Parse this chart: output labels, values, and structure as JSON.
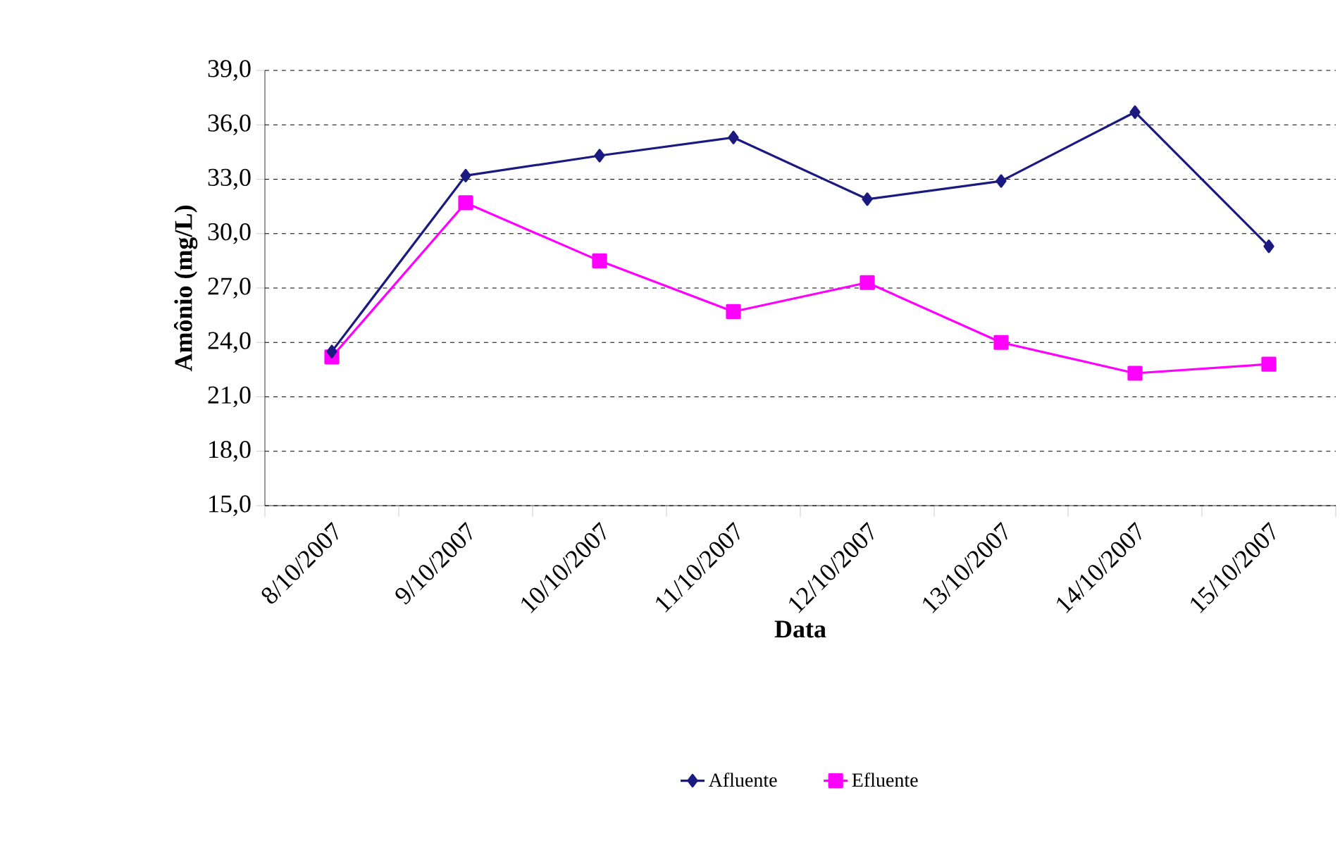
{
  "chart_data": {
    "type": "line",
    "xlabel": "Data",
    "ylabel": "Amônio (mg/L)",
    "categories": [
      "8/10/2007",
      "9/10/2007",
      "10/10/2007",
      "11/10/2007",
      "12/10/2007",
      "13/10/2007",
      "14/10/2007",
      "15/10/2007"
    ],
    "series": [
      {
        "name": "Afluente",
        "color": "#1a1a80",
        "marker": "diamond",
        "values": [
          23.5,
          33.2,
          34.3,
          35.3,
          31.9,
          32.9,
          36.7,
          29.3
        ]
      },
      {
        "name": "Efluente",
        "color": "#ff00ff",
        "marker": "square",
        "values": [
          23.2,
          31.7,
          28.5,
          25.7,
          27.3,
          24.0,
          22.3,
          22.8
        ]
      }
    ],
    "ylim": [
      15,
      39
    ],
    "yticks": [
      {
        "value": 15,
        "label": "15,0"
      },
      {
        "value": 18,
        "label": "18,0"
      },
      {
        "value": 21,
        "label": "21,0"
      },
      {
        "value": 24,
        "label": "24,0"
      },
      {
        "value": 27,
        "label": "27,0"
      },
      {
        "value": 30,
        "label": "30,0"
      },
      {
        "value": 33,
        "label": "33,0"
      },
      {
        "value": 36,
        "label": "36,0"
      },
      {
        "value": 39,
        "label": "39,0"
      }
    ],
    "grid": "y",
    "legend": "bottom",
    "line_style": "solid"
  }
}
